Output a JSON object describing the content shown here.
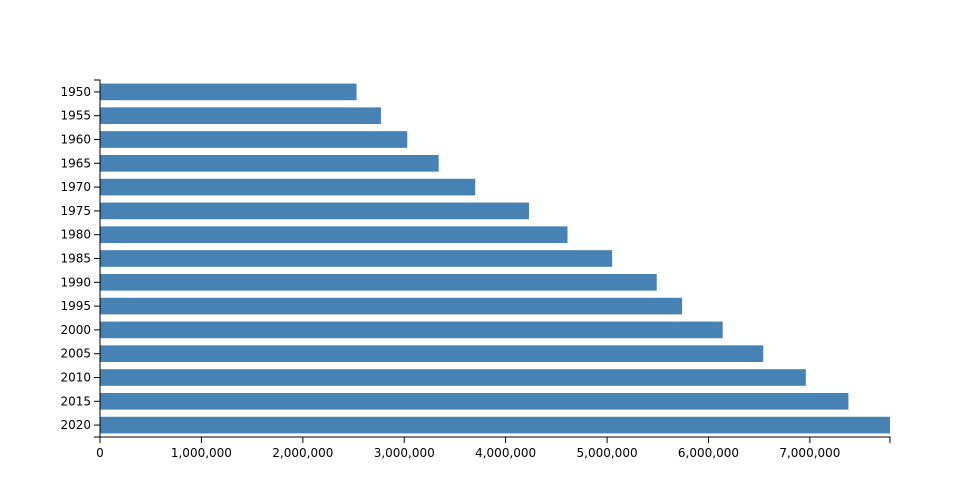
{
  "chart_data": {
    "type": "bar",
    "orientation": "horizontal",
    "categories": [
      "1950",
      "1955",
      "1960",
      "1965",
      "1970",
      "1975",
      "1980",
      "1985",
      "1990",
      "1995",
      "2000",
      "2005",
      "2010",
      "2015",
      "2020"
    ],
    "values": [
      2530000,
      2770000,
      3030000,
      3340000,
      3700000,
      4230000,
      4610000,
      5050000,
      5490000,
      5740000,
      6140000,
      6540000,
      6960000,
      7380000,
      7790000
    ],
    "x_ticks": [
      0,
      1000000,
      2000000,
      3000000,
      4000000,
      5000000,
      6000000,
      7000000
    ],
    "x_tick_labels": [
      "0",
      "1,000,000",
      "2,000,000",
      "3,000,000",
      "4,000,000",
      "5,000,000",
      "6,000,000",
      "7,000,000"
    ],
    "xlim": [
      0,
      7790000
    ],
    "title": "",
    "xlabel": "",
    "ylabel": "",
    "grid": false,
    "legend": "none",
    "bar_color": "#4682b4",
    "axis_color": "#000000"
  }
}
